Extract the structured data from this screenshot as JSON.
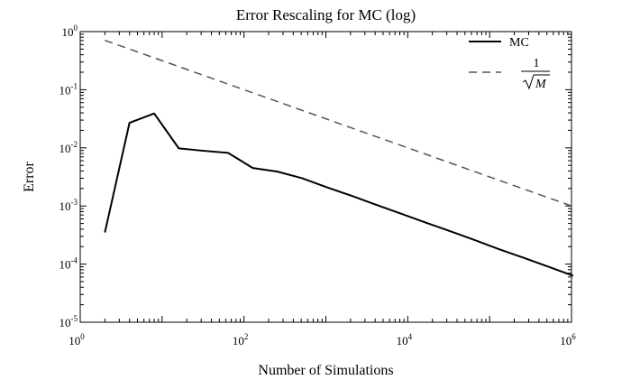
{
  "chart_data": {
    "type": "line",
    "title": "Error Rescaling for MC (log)",
    "xlabel": "Number of Simulations",
    "ylabel": "Error",
    "xscale": "log",
    "yscale": "log",
    "xlim": [
      1,
      1000000
    ],
    "ylim": [
      1e-05,
      1
    ],
    "x_ticks": [
      {
        "base": "10",
        "exp": "0",
        "value": 1
      },
      {
        "base": "10",
        "exp": "2",
        "value": 100
      },
      {
        "base": "10",
        "exp": "4",
        "value": 10000
      },
      {
        "base": "10",
        "exp": "6",
        "value": 1000000
      }
    ],
    "y_ticks": [
      {
        "base": "10",
        "exp": "0",
        "value": 1
      },
      {
        "base": "10",
        "exp": "-1",
        "value": 0.1
      },
      {
        "base": "10",
        "exp": "-2",
        "value": 0.01
      },
      {
        "base": "10",
        "exp": "-3",
        "value": 0.001
      },
      {
        "base": "10",
        "exp": "-4",
        "value": 0.0001
      },
      {
        "base": "10",
        "exp": "-5",
        "value": 1e-05
      }
    ],
    "grid": false,
    "legend_position": "top-right",
    "series": [
      {
        "name": "MC",
        "style": "solid",
        "color": "#000000",
        "x": [
          2,
          4,
          8,
          16,
          32,
          64,
          128,
          256,
          512,
          1024,
          2048,
          4096,
          8192,
          16384,
          32768,
          65536,
          131072,
          262144,
          524288,
          1048576
        ],
        "y": [
          0.00035,
          0.027,
          0.039,
          0.0098,
          0.0089,
          0.0082,
          0.0045,
          0.0039,
          0.003,
          0.0021,
          0.0015,
          0.00105,
          0.00074,
          0.00052,
          0.00037,
          0.00026,
          0.00018,
          0.000128,
          9e-05,
          6.3e-05
        ]
      },
      {
        "name_num": "1",
        "name_den": "M",
        "style": "dashed",
        "color": "#555555",
        "x": [
          2,
          1048576
        ],
        "y": [
          0.7071,
          0.000977
        ]
      }
    ]
  }
}
